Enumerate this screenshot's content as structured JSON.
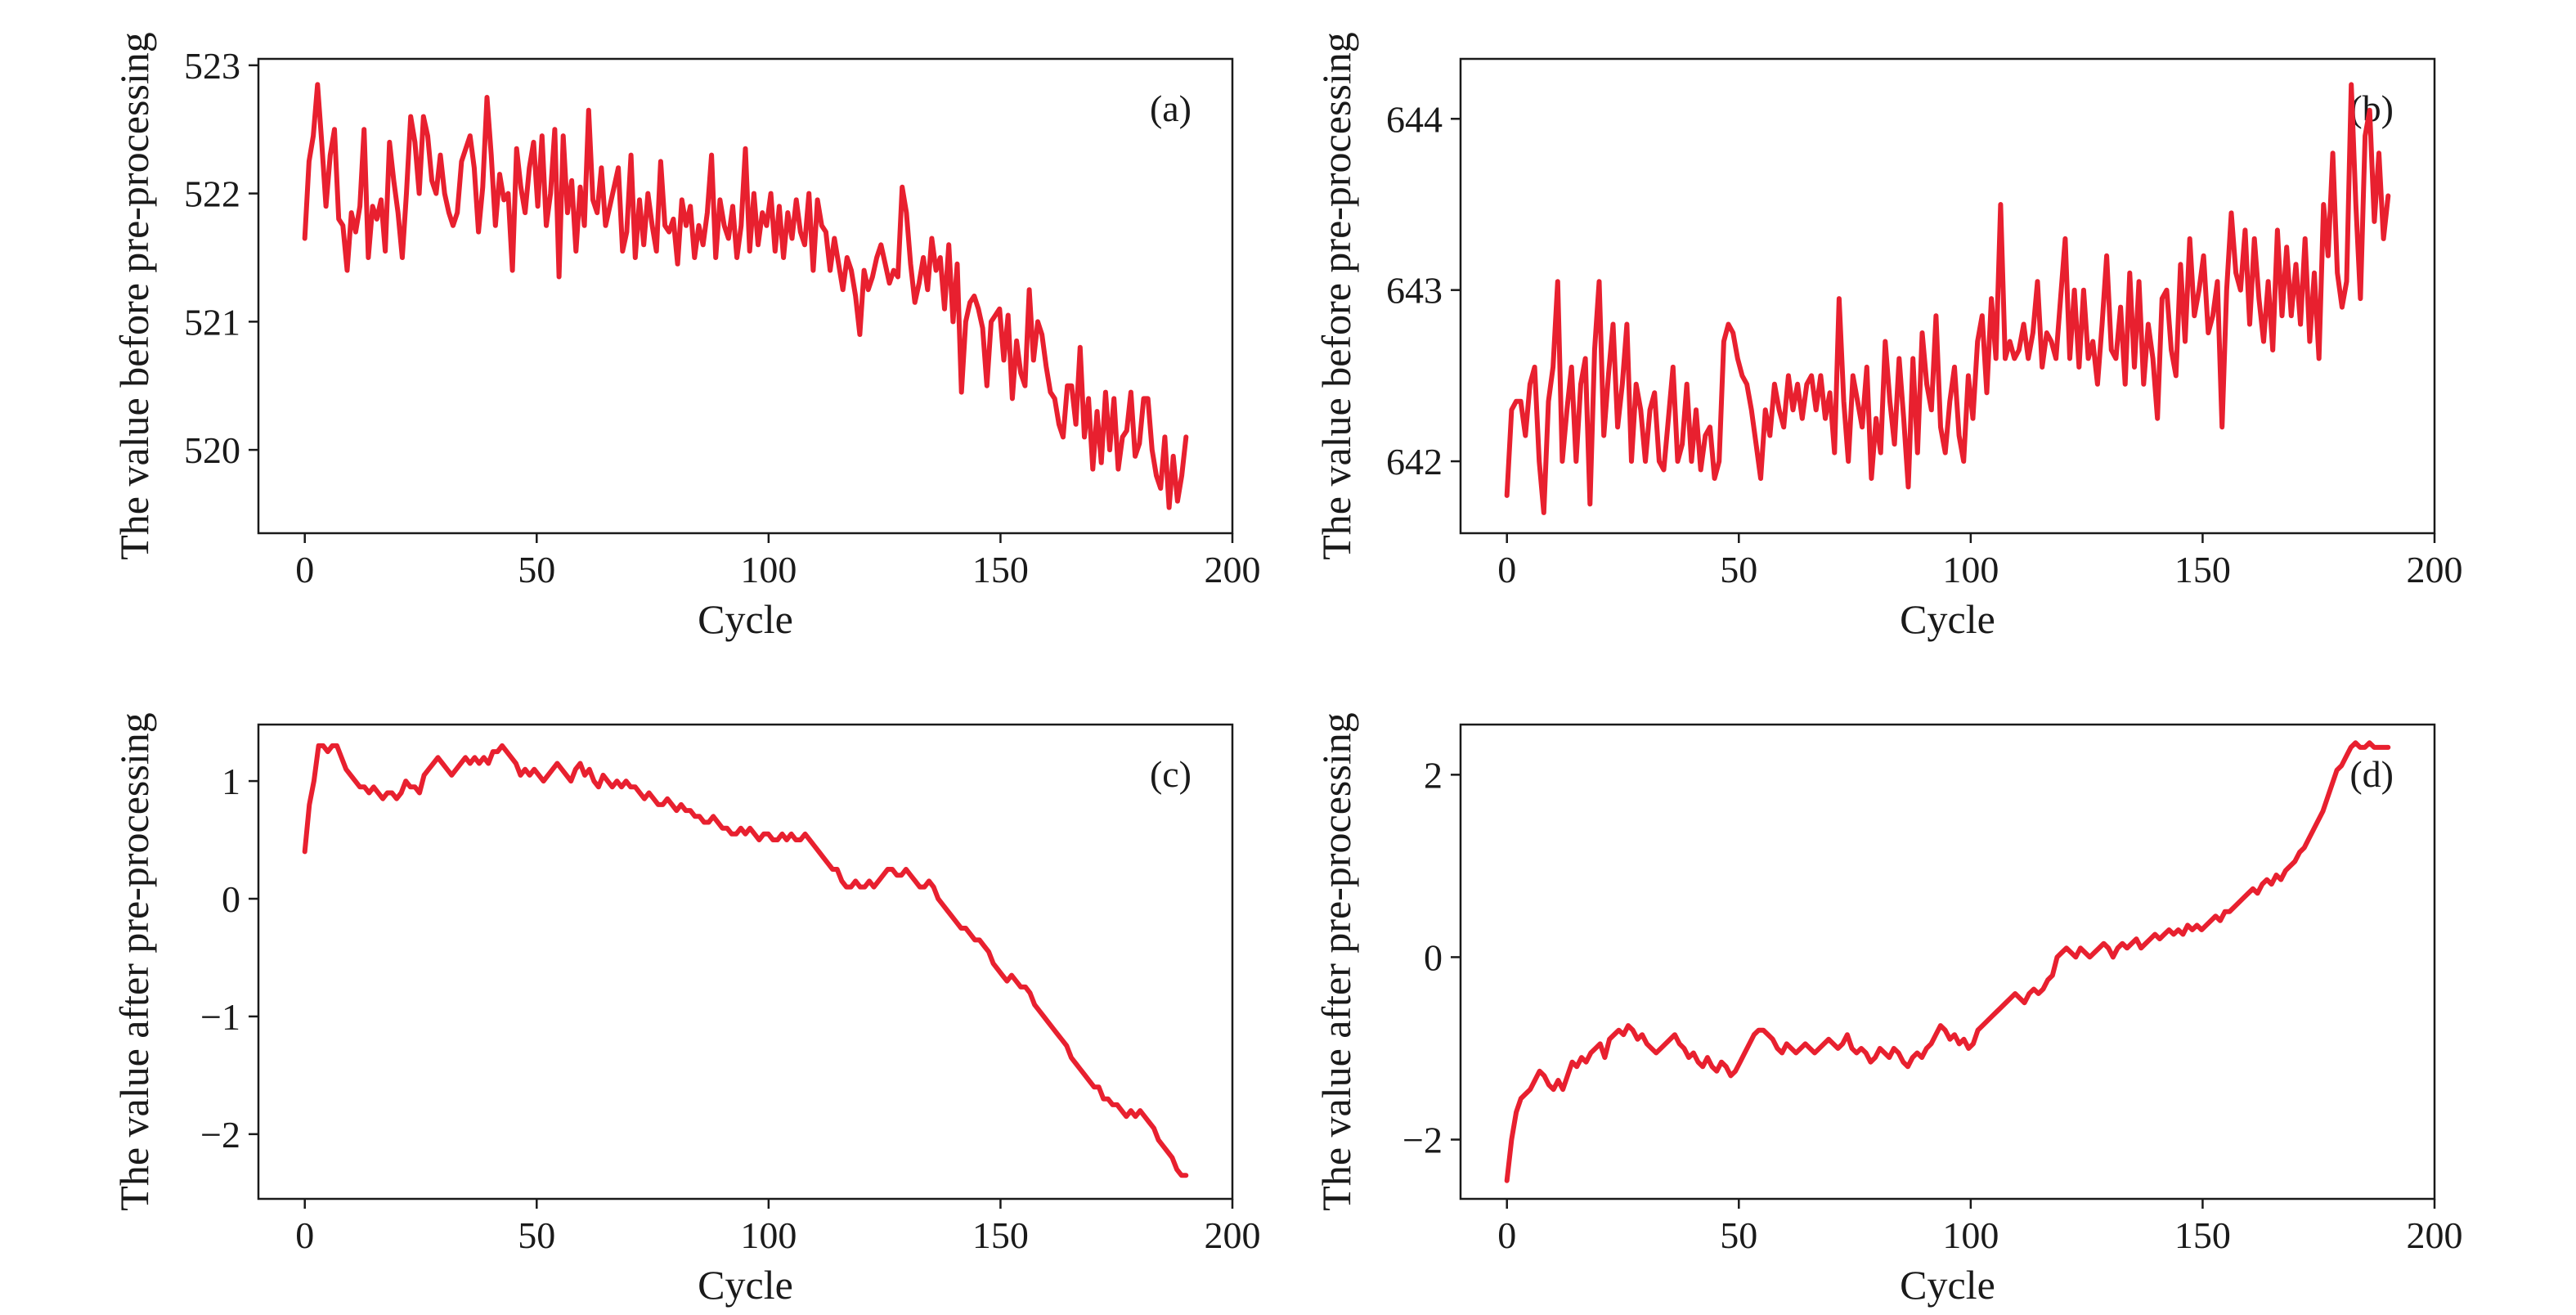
{
  "chart_data": [
    {
      "type": "line",
      "panel_label": "(a)",
      "xlabel": "Cycle",
      "ylabel": "The value before pre-processing",
      "xlim": [
        -10,
        200
      ],
      "ylim": [
        519.35,
        523.05
      ],
      "xticks": [
        0,
        50,
        100,
        150,
        200
      ],
      "yticks": [
        520,
        521,
        522,
        523
      ],
      "color": "#e8202f",
      "grid": false,
      "y": [
        521.65,
        522.25,
        522.45,
        522.85,
        522.4,
        521.9,
        522.3,
        522.5,
        521.8,
        521.75,
        521.4,
        521.85,
        521.7,
        521.9,
        522.5,
        521.5,
        521.9,
        521.8,
        521.95,
        521.55,
        522.4,
        522.1,
        521.85,
        521.5,
        522.0,
        522.6,
        522.4,
        522.0,
        522.6,
        522.45,
        522.1,
        522.0,
        522.3,
        522.0,
        521.85,
        521.75,
        521.85,
        522.25,
        522.35,
        522.45,
        522.2,
        521.7,
        522.05,
        522.75,
        522.3,
        521.75,
        522.15,
        521.95,
        522.0,
        521.4,
        522.35,
        522.05,
        521.85,
        522.2,
        522.4,
        521.9,
        522.45,
        521.75,
        522.0,
        522.5,
        521.35,
        522.45,
        521.85,
        522.1,
        521.55,
        522.05,
        521.75,
        522.65,
        521.95,
        521.85,
        522.2,
        521.75,
        521.9,
        522.05,
        522.2,
        521.55,
        521.7,
        522.3,
        521.5,
        521.95,
        521.6,
        522.0,
        521.75,
        521.55,
        522.25,
        521.75,
        521.7,
        521.8,
        521.45,
        521.95,
        521.75,
        521.9,
        521.5,
        521.75,
        521.6,
        521.85,
        522.3,
        521.5,
        521.95,
        521.75,
        521.65,
        521.9,
        521.5,
        521.75,
        522.35,
        521.55,
        522.0,
        521.6,
        521.85,
        521.75,
        522.0,
        521.55,
        521.9,
        521.5,
        521.85,
        521.65,
        521.95,
        521.7,
        521.6,
        522.0,
        521.4,
        521.95,
        521.75,
        521.7,
        521.4,
        521.65,
        521.45,
        521.25,
        521.5,
        521.4,
        521.2,
        520.9,
        521.4,
        521.25,
        521.35,
        521.5,
        521.6,
        521.45,
        521.3,
        521.4,
        521.35,
        522.05,
        521.85,
        521.45,
        521.15,
        521.3,
        521.5,
        521.25,
        521.65,
        521.4,
        521.5,
        521.1,
        521.6,
        521.0,
        521.45,
        520.45,
        521.0,
        521.15,
        521.2,
        521.1,
        520.95,
        520.5,
        521.0,
        521.05,
        521.1,
        520.7,
        521.05,
        520.4,
        520.85,
        520.6,
        520.5,
        521.25,
        520.7,
        521.0,
        520.9,
        520.65,
        520.45,
        520.4,
        520.2,
        520.1,
        520.5,
        520.5,
        520.2,
        520.8,
        520.1,
        520.4,
        519.85,
        520.3,
        519.9,
        520.45,
        520.0,
        520.4,
        519.85,
        520.1,
        520.15,
        520.45,
        519.95,
        520.05,
        520.4,
        520.4,
        520.0,
        519.8,
        519.7,
        520.1,
        519.55,
        519.95,
        519.6,
        519.8,
        520.1
      ]
    },
    {
      "type": "line",
      "panel_label": "(b)",
      "xlabel": "Cycle",
      "ylabel": "The value before pre-processing",
      "xlim": [
        -10,
        200
      ],
      "ylim": [
        641.58,
        644.35
      ],
      "xticks": [
        0,
        50,
        100,
        150,
        200
      ],
      "yticks": [
        642,
        643,
        644
      ],
      "color": "#e8202f",
      "grid": false,
      "y": [
        641.8,
        642.3,
        642.35,
        642.35,
        642.15,
        642.45,
        642.55,
        642.0,
        641.7,
        642.35,
        642.55,
        643.05,
        642.0,
        642.3,
        642.55,
        642.0,
        642.45,
        642.6,
        641.75,
        642.65,
        643.05,
        642.15,
        642.5,
        642.8,
        642.2,
        642.45,
        642.8,
        642.0,
        642.45,
        642.3,
        642.0,
        642.3,
        642.4,
        642.0,
        641.95,
        642.25,
        642.55,
        642.0,
        642.1,
        642.45,
        642.0,
        642.3,
        641.95,
        642.15,
        642.2,
        641.9,
        642.0,
        642.7,
        642.8,
        642.75,
        642.6,
        642.5,
        642.45,
        642.3,
        642.1,
        641.9,
        642.3,
        642.15,
        642.45,
        642.3,
        642.2,
        642.5,
        642.3,
        642.45,
        642.25,
        642.45,
        642.5,
        642.3,
        642.5,
        642.25,
        642.4,
        642.05,
        642.95,
        642.35,
        642.0,
        642.5,
        642.35,
        642.2,
        642.55,
        641.9,
        642.25,
        642.05,
        642.7,
        642.35,
        642.1,
        642.6,
        642.25,
        641.85,
        642.6,
        642.05,
        642.75,
        642.45,
        642.3,
        642.85,
        642.2,
        642.05,
        642.35,
        642.55,
        642.15,
        642.0,
        642.5,
        642.25,
        642.7,
        642.85,
        642.4,
        642.95,
        642.6,
        643.5,
        642.6,
        642.7,
        642.6,
        642.65,
        642.8,
        642.6,
        642.75,
        643.05,
        642.55,
        642.75,
        642.7,
        642.6,
        642.95,
        643.3,
        642.6,
        643.0,
        642.55,
        643.0,
        642.6,
        642.7,
        642.45,
        642.8,
        643.2,
        642.65,
        642.6,
        642.9,
        642.45,
        643.1,
        642.55,
        643.05,
        642.45,
        642.8,
        642.6,
        642.25,
        642.95,
        643.0,
        642.65,
        642.5,
        643.15,
        642.7,
        643.3,
        642.85,
        643.0,
        643.2,
        642.75,
        642.85,
        643.05,
        642.2,
        643.0,
        643.45,
        643.1,
        643.0,
        643.35,
        642.8,
        643.3,
        642.95,
        642.7,
        643.05,
        642.65,
        643.35,
        642.85,
        643.25,
        642.85,
        643.15,
        642.8,
        643.3,
        642.7,
        643.1,
        642.6,
        643.5,
        643.2,
        643.8,
        643.1,
        642.9,
        643.05,
        644.2,
        643.5,
        642.95,
        643.9,
        644.05,
        643.4,
        643.8,
        643.3,
        643.55
      ]
    },
    {
      "type": "line",
      "panel_label": "(c)",
      "xlabel": "Cycle",
      "ylabel": "The value after pre-processing",
      "xlim": [
        -10,
        200
      ],
      "ylim": [
        -2.55,
        1.48
      ],
      "xticks": [
        0,
        50,
        100,
        150,
        200
      ],
      "yticks": [
        -2,
        -1,
        0,
        1
      ],
      "color": "#e8202f",
      "grid": false,
      "y": [
        0.4,
        0.8,
        1.0,
        1.3,
        1.3,
        1.25,
        1.3,
        1.3,
        1.2,
        1.1,
        1.05,
        1.0,
        0.95,
        0.95,
        0.9,
        0.95,
        0.9,
        0.85,
        0.9,
        0.9,
        0.85,
        0.9,
        1.0,
        0.95,
        0.95,
        0.9,
        1.05,
        1.1,
        1.15,
        1.2,
        1.15,
        1.1,
        1.05,
        1.1,
        1.15,
        1.2,
        1.15,
        1.2,
        1.15,
        1.2,
        1.15,
        1.25,
        1.25,
        1.3,
        1.25,
        1.2,
        1.15,
        1.05,
        1.1,
        1.05,
        1.1,
        1.05,
        1.0,
        1.05,
        1.1,
        1.15,
        1.1,
        1.05,
        1.0,
        1.1,
        1.15,
        1.05,
        1.1,
        1.0,
        0.95,
        1.05,
        1.0,
        0.95,
        1.0,
        0.95,
        1.0,
        0.95,
        0.95,
        0.9,
        0.85,
        0.9,
        0.85,
        0.8,
        0.8,
        0.85,
        0.8,
        0.75,
        0.8,
        0.75,
        0.75,
        0.7,
        0.7,
        0.65,
        0.65,
        0.7,
        0.65,
        0.6,
        0.6,
        0.55,
        0.55,
        0.6,
        0.55,
        0.6,
        0.55,
        0.5,
        0.55,
        0.55,
        0.5,
        0.5,
        0.55,
        0.5,
        0.55,
        0.5,
        0.5,
        0.55,
        0.5,
        0.45,
        0.4,
        0.35,
        0.3,
        0.25,
        0.25,
        0.15,
        0.1,
        0.1,
        0.15,
        0.1,
        0.1,
        0.15,
        0.1,
        0.15,
        0.2,
        0.25,
        0.25,
        0.2,
        0.2,
        0.25,
        0.2,
        0.15,
        0.1,
        0.1,
        0.15,
        0.1,
        0.0,
        -0.05,
        -0.1,
        -0.15,
        -0.2,
        -0.25,
        -0.25,
        -0.3,
        -0.35,
        -0.35,
        -0.4,
        -0.45,
        -0.55,
        -0.6,
        -0.65,
        -0.7,
        -0.65,
        -0.7,
        -0.75,
        -0.75,
        -0.8,
        -0.9,
        -0.95,
        -1.0,
        -1.05,
        -1.1,
        -1.15,
        -1.2,
        -1.25,
        -1.35,
        -1.4,
        -1.45,
        -1.5,
        -1.55,
        -1.6,
        -1.6,
        -1.7,
        -1.7,
        -1.75,
        -1.75,
        -1.8,
        -1.85,
        -1.8,
        -1.85,
        -1.8,
        -1.85,
        -1.9,
        -1.95,
        -2.05,
        -2.1,
        -2.15,
        -2.2,
        -2.3,
        -2.35,
        -2.35
      ]
    },
    {
      "type": "line",
      "panel_label": "(d)",
      "xlabel": "Cycle",
      "ylabel": "The value after pre-processing",
      "xlim": [
        -10,
        200
      ],
      "ylim": [
        -2.65,
        2.55
      ],
      "xticks": [
        0,
        50,
        100,
        150,
        200
      ],
      "yticks": [
        -2,
        0,
        2
      ],
      "color": "#e8202f",
      "grid": false,
      "y": [
        -2.45,
        -2.0,
        -1.7,
        -1.55,
        -1.5,
        -1.45,
        -1.35,
        -1.25,
        -1.3,
        -1.4,
        -1.45,
        -1.35,
        -1.45,
        -1.3,
        -1.15,
        -1.2,
        -1.1,
        -1.15,
        -1.05,
        -1.0,
        -0.95,
        -1.1,
        -0.9,
        -0.85,
        -0.8,
        -0.85,
        -0.75,
        -0.8,
        -0.9,
        -0.85,
        -0.95,
        -1.0,
        -1.05,
        -1.0,
        -0.95,
        -0.9,
        -0.85,
        -0.95,
        -1.0,
        -1.1,
        -1.05,
        -1.15,
        -1.2,
        -1.1,
        -1.2,
        -1.25,
        -1.15,
        -1.2,
        -1.3,
        -1.25,
        -1.15,
        -1.05,
        -0.95,
        -0.85,
        -0.8,
        -0.8,
        -0.85,
        -0.9,
        -1.0,
        -1.05,
        -0.95,
        -1.0,
        -1.05,
        -1.0,
        -0.95,
        -1.0,
        -1.05,
        -1.0,
        -0.95,
        -0.9,
        -0.95,
        -1.0,
        -0.95,
        -0.85,
        -1.0,
        -1.05,
        -1.0,
        -1.05,
        -1.15,
        -1.1,
        -1.0,
        -1.05,
        -1.1,
        -1.0,
        -1.05,
        -1.15,
        -1.2,
        -1.1,
        -1.05,
        -1.1,
        -1.0,
        -0.95,
        -0.85,
        -0.75,
        -0.8,
        -0.9,
        -0.85,
        -0.95,
        -0.9,
        -1.0,
        -0.95,
        -0.8,
        -0.75,
        -0.7,
        -0.65,
        -0.6,
        -0.55,
        -0.5,
        -0.45,
        -0.4,
        -0.45,
        -0.5,
        -0.4,
        -0.35,
        -0.4,
        -0.35,
        -0.25,
        -0.2,
        0.0,
        0.05,
        0.1,
        0.05,
        0.0,
        0.1,
        0.05,
        0.0,
        0.05,
        0.1,
        0.15,
        0.1,
        0.0,
        0.1,
        0.15,
        0.1,
        0.15,
        0.2,
        0.1,
        0.15,
        0.2,
        0.25,
        0.2,
        0.25,
        0.3,
        0.25,
        0.3,
        0.25,
        0.35,
        0.3,
        0.35,
        0.3,
        0.35,
        0.4,
        0.45,
        0.4,
        0.5,
        0.5,
        0.55,
        0.6,
        0.65,
        0.7,
        0.75,
        0.7,
        0.8,
        0.85,
        0.8,
        0.9,
        0.85,
        0.95,
        1.0,
        1.05,
        1.15,
        1.2,
        1.3,
        1.4,
        1.5,
        1.6,
        1.75,
        1.9,
        2.05,
        2.1,
        2.2,
        2.3,
        2.35,
        2.3,
        2.3,
        2.35,
        2.3,
        2.3,
        2.3,
        2.3
      ]
    }
  ]
}
